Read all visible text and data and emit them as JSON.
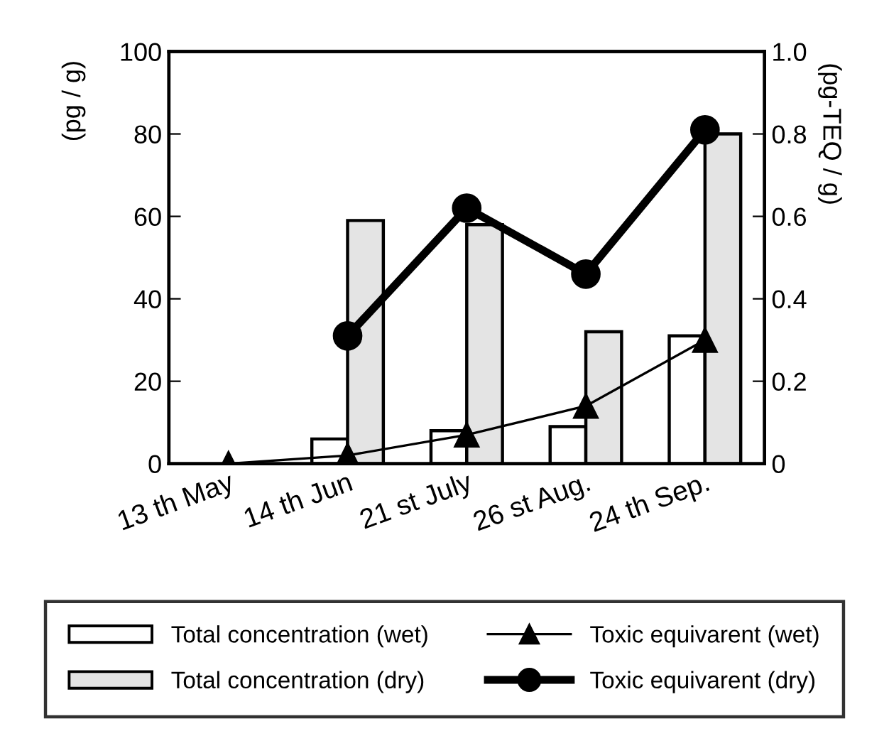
{
  "chart_data": {
    "type": "bar",
    "ylabel": "(pg / g)",
    "y2label": "(pg-TEQ / g)",
    "categories": [
      "13 th May",
      "14 th Jun",
      "21 st July",
      "26 st Aug.",
      "24 th Sep."
    ],
    "series": [
      {
        "name": "Total concentration (wet)",
        "color": "#ffffff",
        "values": [
          null,
          6,
          8,
          9,
          31
        ]
      },
      {
        "name": "Total concentration (dry)",
        "color": "#e4e4e4",
        "values": [
          null,
          59,
          58,
          32,
          80
        ]
      },
      {
        "name": "Toxic equivarent (wet)",
        "type": "line",
        "axis": "y2",
        "color": "#000000",
        "marker": "triangle",
        "values": [
          0,
          0.02,
          0.07,
          0.14,
          0.3
        ]
      },
      {
        "name": "Toxic equivarent (dry)",
        "type": "line",
        "axis": "y2",
        "color": "#000000",
        "marker": "circle",
        "values": [
          null,
          0.31,
          0.62,
          0.46,
          0.81
        ]
      }
    ],
    "ylim": [
      0,
      100
    ],
    "yticks": [
      0,
      20,
      40,
      60,
      80,
      100
    ],
    "y2lim": [
      0,
      1.0
    ],
    "y2ticks": [
      0,
      {
        "value": 0.2,
        "label": "0.2"
      },
      {
        "value": 0.4,
        "label": "0.4"
      },
      {
        "value": 0.6,
        "label": "0.6"
      },
      {
        "value": 0.8,
        "label": "0.8"
      },
      {
        "value": 1.0,
        "label": "1.0"
      }
    ],
    "grid": false,
    "legend": "bottom",
    "line_style": "solid"
  }
}
